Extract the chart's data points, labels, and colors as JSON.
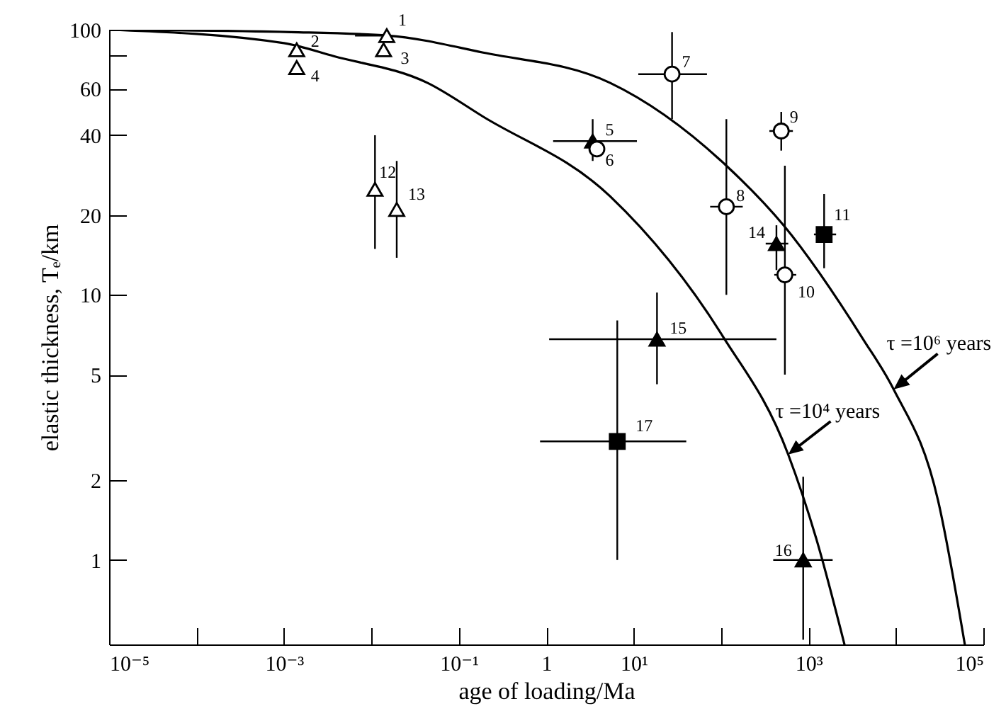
{
  "chart_data": {
    "type": "scatter",
    "xlabel": "age of loading/Ma",
    "ylabel": "elastic thickness, Tₑ/km",
    "log": "xy",
    "grid": false,
    "xlim": [
      1e-05,
      100000
    ],
    "ylim": [
      0.48,
      100
    ],
    "xticks": [
      {
        "value": 1e-05,
        "label": "10⁻⁵"
      },
      {
        "value": 0.0001,
        "label": null
      },
      {
        "value": 0.001,
        "label": "10⁻³"
      },
      {
        "value": 0.01,
        "label": null
      },
      {
        "value": 0.1,
        "label": "10⁻¹"
      },
      1,
      {
        "value": 10,
        "label": "10¹"
      },
      {
        "value": 100,
        "label": null
      },
      {
        "value": 1000,
        "label": "10³"
      },
      {
        "value": 10000,
        "label": null
      },
      {
        "value": 100000,
        "label": "10⁵"
      }
    ],
    "yticks": [
      1,
      2,
      5,
      10,
      20,
      40,
      60,
      {
        "value": 80,
        "label": null
      },
      100
    ],
    "series": [
      {
        "type": "line",
        "color": "#000000",
        "marker": "none",
        "line_style": "solid",
        "x": [
          1e-05,
          0.001,
          0.0037,
          0.044,
          0.19,
          5.4,
          104,
          586,
          1230,
          2580
        ],
        "values": [
          100,
          89,
          79.5,
          63,
          47,
          23.5,
          7.0,
          2.5,
          1.2,
          0.48
        ]
      },
      {
        "type": "line",
        "color": "#000000",
        "marker": "none",
        "line_style": "solid",
        "x": [
          1e-05,
          0.0012,
          0.0155,
          0.19,
          5.4,
          115,
          518,
          4220,
          9420,
          30300,
          61400
        ],
        "values": [
          100,
          98,
          95,
          82,
          63,
          30.7,
          18.3,
          6.8,
          4.4,
          1.68,
          0.48
        ]
      },
      {
        "color": "#ffffff",
        "marker": "triangle",
        "x": [
          0.015,
          0.0014,
          0.0138,
          0.0014,
          0.011,
          0.0195
        ],
        "values": [
          95,
          84,
          84,
          72,
          25,
          21
        ],
        "errors": [
          null,
          null,
          null,
          null,
          [
            14.9,
            40
          ],
          [
            13.8,
            32
          ]
        ],
        "xerrors": [
          [
            0.0065,
            0.017
          ],
          null,
          null,
          null,
          null,
          null
        ]
      },
      {
        "color": "#000000",
        "marker": "triangle",
        "x": [
          3.4,
          430,
          18.5,
          870
        ],
        "values": [
          38,
          15.6,
          6.8,
          1
        ],
        "errors": [
          [
            32,
            46
          ],
          [
            12.4,
            18.3
          ],
          [
            4.6,
            10.2
          ],
          [
            0.5,
            2.06
          ]
        ],
        "xerrors": [
          [
            1.2,
            10.9
          ],
          [
            324,
            587
          ],
          [
            1.08,
            430
          ],
          [
            395,
            1890
          ]
        ]
      },
      {
        "color": "#ffffff",
        "marker": "circle",
        "x": [
          3.8,
          27.5,
          115,
          488,
          537
        ],
        "values": [
          35.5,
          68,
          21.5,
          41.5,
          11.9
        ],
        "errors": [
          null,
          [
            46,
            98
          ],
          [
            10,
            46
          ],
          [
            35,
            49
          ],
          [
            5.0,
            30.7
          ]
        ],
        "xerrors": [
          null,
          [
            11.3,
            69
          ],
          [
            75,
            177
          ],
          [
            357,
            663
          ],
          [
            406,
            724
          ]
        ]
      },
      {
        "color": "#000000",
        "marker": "square",
        "x": [
          1510,
          6.5
        ],
        "values": [
          16.9,
          2.8
        ],
        "errors": [
          [
            12.6,
            24
          ],
          [
            1.0,
            8.0
          ]
        ],
        "xerrors": [
          [
            1155,
            2070
          ],
          [
            0.85,
            40
          ]
        ]
      }
    ],
    "annotations": [
      {
        "text": "1",
        "x": 0.015,
        "y": 95
      },
      {
        "text": "2",
        "x": 0.0014,
        "y": 84
      },
      {
        "text": "3",
        "x": 0.0138,
        "y": 84
      },
      {
        "text": "4",
        "x": 0.0014,
        "y": 72
      },
      {
        "text": "5",
        "x": 3.4,
        "y": 38
      },
      {
        "text": "6",
        "x": 3.8,
        "y": 35.5
      },
      {
        "text": "7",
        "x": 27.5,
        "y": 68
      },
      {
        "text": "8",
        "x": 115,
        "y": 21.5
      },
      {
        "text": "9",
        "x": 488,
        "y": 41.5
      },
      {
        "text": "10",
        "x": 537,
        "y": 11.9
      },
      {
        "text": "11",
        "x": 1510,
        "y": 16.9
      },
      {
        "text": "12",
        "x": 0.011,
        "y": 25
      },
      {
        "text": "13",
        "x": 0.0195,
        "y": 21
      },
      {
        "text": "14",
        "x": 430,
        "y": 15.6
      },
      {
        "text": "15",
        "x": 18.5,
        "y": 6.8
      },
      {
        "text": "16",
        "x": 870,
        "y": 1
      },
      {
        "text": "17",
        "x": 6.5,
        "y": 2.8
      },
      {
        "text": "τ =10⁴ years",
        "x": 586,
        "y": 2.5
      },
      {
        "text": "τ =10⁶ years",
        "x": 9420,
        "y": 4.4
      }
    ]
  }
}
